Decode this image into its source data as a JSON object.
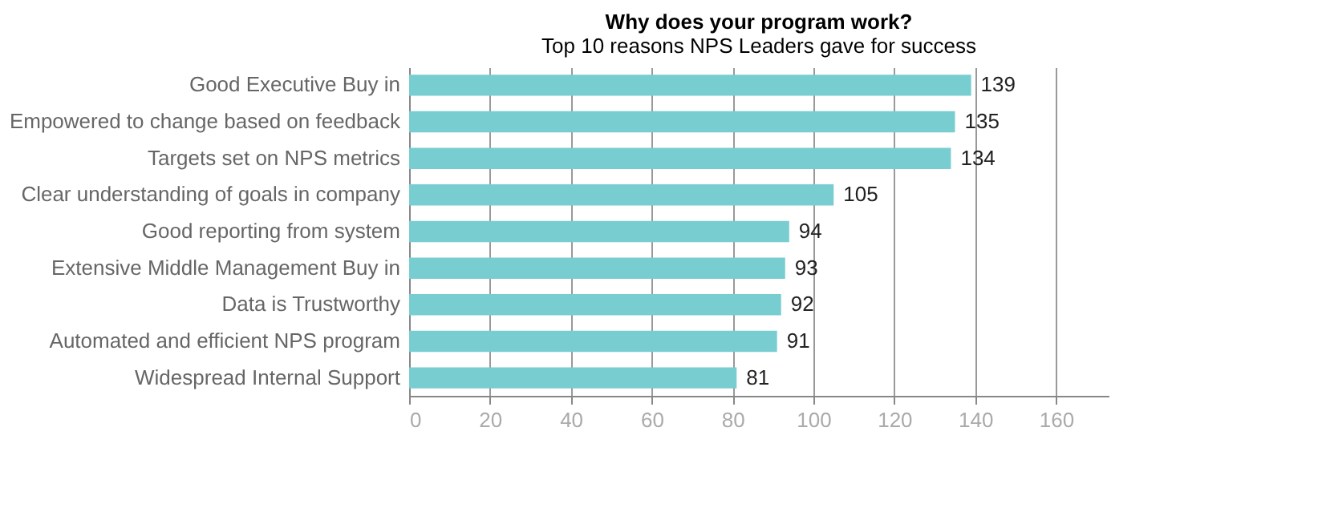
{
  "chart_data": {
    "type": "bar",
    "orientation": "horizontal",
    "title": "Why does your program work?",
    "subtitle": "Top 10 reasons NPS Leaders gave for success",
    "categories": [
      "Good Executive Buy in",
      "Empowered to change based on feedback",
      "Targets set on NPS metrics",
      "Clear understanding of goals in company",
      "Good reporting from system",
      "Extensive Middle Management Buy in",
      "Data is Trustworthy",
      "Automated and efficient NPS program",
      "Widespread Internal Support"
    ],
    "values": [
      139,
      135,
      134,
      105,
      94,
      93,
      92,
      91,
      81
    ],
    "color": "#78cdd1",
    "xlim": [
      0,
      173
    ],
    "xticks": [
      0,
      20,
      40,
      60,
      80,
      100,
      120,
      140,
      160
    ],
    "grid": "x",
    "data_labels": true
  }
}
